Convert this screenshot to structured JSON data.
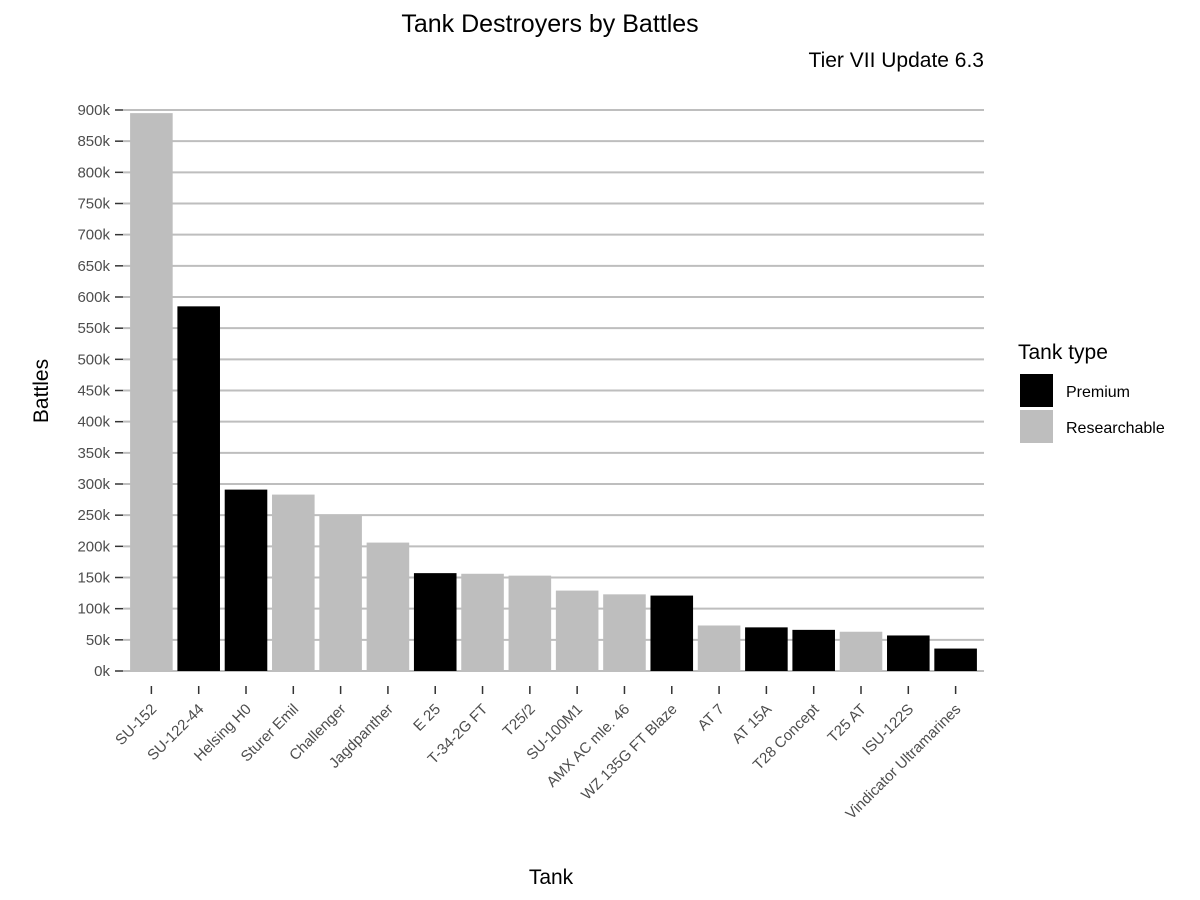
{
  "chart_data": {
    "type": "bar",
    "title": "Tank Destroyers by Battles",
    "subtitle": "Tier VII Update 6.3",
    "xlabel": "Tank",
    "ylabel": "Battles",
    "ylim": [
      0,
      900000
    ],
    "y_ticks": [
      {
        "value": 0,
        "label": "0k"
      },
      {
        "value": 50000,
        "label": "50k"
      },
      {
        "value": 100000,
        "label": "100k"
      },
      {
        "value": 150000,
        "label": "150k"
      },
      {
        "value": 200000,
        "label": "200k"
      },
      {
        "value": 250000,
        "label": "250k"
      },
      {
        "value": 300000,
        "label": "300k"
      },
      {
        "value": 350000,
        "label": "350k"
      },
      {
        "value": 400000,
        "label": "400k"
      },
      {
        "value": 450000,
        "label": "450k"
      },
      {
        "value": 500000,
        "label": "500k"
      },
      {
        "value": 550000,
        "label": "550k"
      },
      {
        "value": 600000,
        "label": "600k"
      },
      {
        "value": 650000,
        "label": "650k"
      },
      {
        "value": 700000,
        "label": "700k"
      },
      {
        "value": 750000,
        "label": "750k"
      },
      {
        "value": 800000,
        "label": "800k"
      },
      {
        "value": 850000,
        "label": "850k"
      },
      {
        "value": 900000,
        "label": "900k"
      }
    ],
    "grid": "horizontal-major",
    "legend": {
      "title": "Tank type",
      "position": "right",
      "entries": [
        {
          "name": "Premium",
          "color": "#000000"
        },
        {
          "name": "Researchable",
          "color": "#bebebe"
        }
      ]
    },
    "colors": {
      "Premium": "#000000",
      "Researchable": "#bebebe",
      "grid": "#bebebe",
      "tick": "#333333"
    },
    "categories": [
      "SU-152",
      "SU-122-44",
      "Helsing H0",
      "Sturer Emil",
      "Challenger",
      "Jagdpanther",
      "E 25",
      "T-34-2G FT",
      "T25/2",
      "SU-100M1",
      "AMX AC mle. 46",
      "WZ 135G FT Blaze",
      "AT 7",
      "AT 15A",
      "T28 Concept",
      "T25 AT",
      "ISU-122S",
      "Vindicator Ultramarines"
    ],
    "types": [
      "Researchable",
      "Premium",
      "Premium",
      "Researchable",
      "Researchable",
      "Researchable",
      "Premium",
      "Researchable",
      "Researchable",
      "Researchable",
      "Researchable",
      "Premium",
      "Researchable",
      "Premium",
      "Premium",
      "Researchable",
      "Premium",
      "Premium"
    ],
    "values": [
      895000,
      585000,
      291000,
      283000,
      250000,
      206000,
      157000,
      156000,
      153000,
      129000,
      123000,
      121000,
      73000,
      70000,
      66000,
      63000,
      57000,
      36000
    ]
  }
}
